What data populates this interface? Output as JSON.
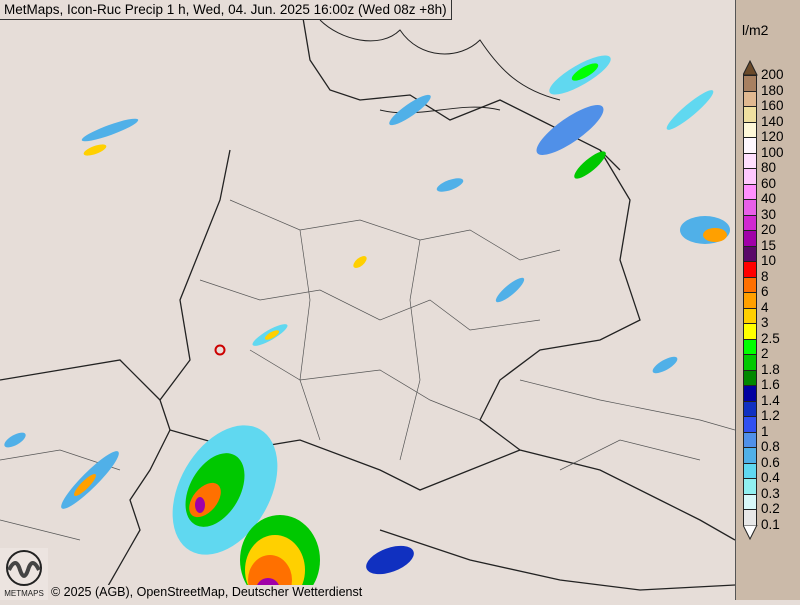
{
  "title": "MetMaps, Icon-Ruc Precip 1 h, Wed, 04. Jun. 2025 16:00z (Wed 08z +8h)",
  "footer": "© 2025 (AGB), OpenStreetMap, Deutscher Wetterdienst",
  "logo_text": "METMAPS",
  "legend": {
    "unit": "l/m2",
    "labels": [
      "200",
      "180",
      "160",
      "140",
      "120",
      "100",
      "80",
      "60",
      "40",
      "30",
      "20",
      "15",
      "10",
      "8",
      "6",
      "4",
      "3",
      "2.5",
      "2",
      "1.8",
      "1.6",
      "1.4",
      "1.2",
      "1",
      "0.8",
      "0.6",
      "0.4",
      "0.3",
      "0.2",
      "0.1"
    ],
    "colors": [
      "#a88060",
      "#e0b890",
      "#f0e0a0",
      "#fff8d8",
      "#fff8ff",
      "#ffe0ff",
      "#ffc8ff",
      "#ff90ff",
      "#e860e8",
      "#d028d0",
      "#a000a8",
      "#5a0868",
      "#ff0000",
      "#ff7000",
      "#ffa000",
      "#ffd000",
      "#ffff00",
      "#00ff00",
      "#00c800",
      "#008800",
      "#0000a0",
      "#1030c0",
      "#3050f0",
      "#5090e8",
      "#50b0e8",
      "#60d8f0",
      "#90f0f0",
      "#d8f8f8",
      "#e8e8e8"
    ],
    "top_arrow_color": "#6b4a2a",
    "bottom_arrow_color": "#ffffff"
  },
  "map": {
    "background": "#e6ddd8",
    "marker_color": "#cc0000"
  }
}
